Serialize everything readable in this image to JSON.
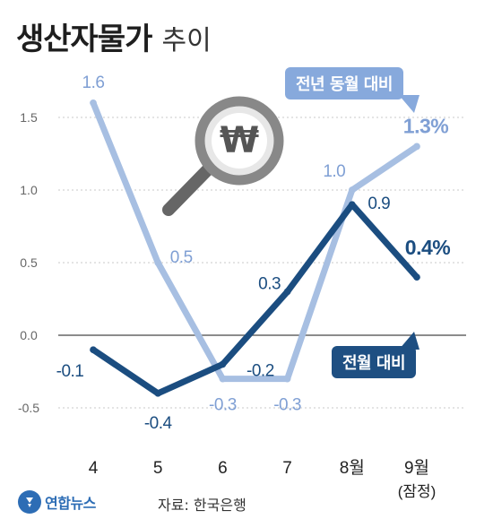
{
  "header": {
    "title": "생산자물가",
    "subtitle": "추이"
  },
  "footer": {
    "logo_text": "연합뉴스",
    "source": "자료: 한국은행"
  },
  "colors": {
    "yoy_line": "#a7bfe2",
    "mom_line": "#1b4d80",
    "yoy_label": "#7f9fd4",
    "zero_line": "#666666",
    "magnifier_rim": "#888888",
    "won_mark": "#555555"
  },
  "icons": [
    "magnifier-won-icon"
  ],
  "chart_data": {
    "type": "line",
    "categories": [
      "4",
      "5",
      "6",
      "7",
      "8월",
      "9월"
    ],
    "category_notes": [
      "",
      "",
      "",
      "",
      "",
      "(잠정)"
    ],
    "yticks": [
      "1.5",
      "1.0",
      "0.5",
      "0.0",
      "-0.5"
    ],
    "ylim": [
      -0.55,
      1.6
    ],
    "grid": "horizontal",
    "series": [
      {
        "name": "전년 동월 대비",
        "values": [
          1.6,
          0.5,
          -0.3,
          -0.3,
          1.0,
          1.3
        ],
        "labels": [
          "1.6",
          "0.5",
          "-0.3",
          "-0.3",
          "1.0",
          "1.3%"
        ]
      },
      {
        "name": "전월 대비",
        "values": [
          -0.1,
          -0.4,
          -0.2,
          0.3,
          0.9,
          0.4
        ],
        "labels": [
          "-0.1",
          "-0.4",
          "-0.2",
          "0.3",
          "0.9",
          "0.4%"
        ]
      }
    ]
  }
}
